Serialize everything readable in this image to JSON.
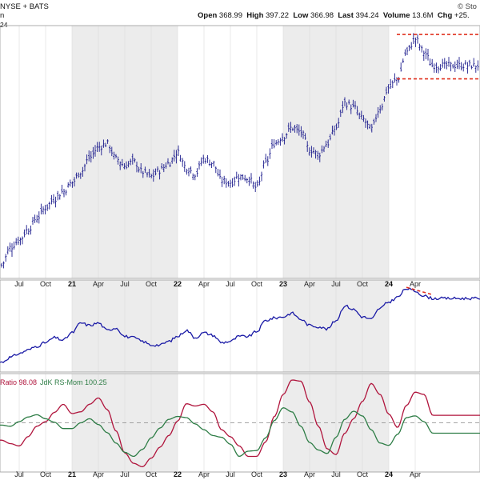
{
  "header": {
    "exchange": "NYSE + BATS",
    "watermark": "© Sto",
    "open_label": "Open",
    "open_value": "368.99",
    "high_label": "High",
    "high_value": "397.22",
    "low_label": "Low",
    "low_value": "366.98",
    "last_label": "Last",
    "last_value": "394.24",
    "volume_label": "Volume",
    "volume_value": "13.6M",
    "chg_label": "Chg",
    "chg_value": "+25.",
    "price_tag_fragment": "24",
    "line2_fragment": "n"
  },
  "indicator": {
    "label_ratio": "Ratio 98.08",
    "label_mom": "JdK RS-Mom 100.25"
  },
  "colors": {
    "price_bars": "#1a1a8c",
    "rs_line": "#1a1aa6",
    "ratio_line": "#b0143c",
    "mom_line": "#2e7d46",
    "annotation": "#e0301e",
    "shade": "#ececec"
  },
  "chart_data": {
    "type": "line",
    "x_tick_labels": [
      "Jul",
      "Oct",
      "21",
      "Apr",
      "Jul",
      "Oct",
      "22",
      "Apr",
      "Jul",
      "Oct",
      "23",
      "Apr",
      "Jul",
      "Oct",
      "24",
      "Apr"
    ],
    "x_ticks": [
      "2020-07",
      "2020-10",
      "2021-01",
      "2021-04",
      "2021-07",
      "2021-10",
      "2022-01",
      "2022-04",
      "2022-07",
      "2022-10",
      "2023-01",
      "2023-04",
      "2023-07",
      "2023-10",
      "2024-01",
      "2024-04"
    ],
    "bold_year_ticks": [
      "21",
      "22",
      "23",
      "24"
    ],
    "panels": [
      {
        "name": "price",
        "style": "ohlc-bars",
        "points": [
          [
            "2020-05",
            185
          ],
          [
            "2020-06",
            205
          ],
          [
            "2020-07",
            213
          ],
          [
            "2020-08",
            225
          ],
          [
            "2020-09",
            238
          ],
          [
            "2020-10",
            250
          ],
          [
            "2020-11",
            260
          ],
          [
            "2020-12",
            268
          ],
          [
            "2021-01",
            278
          ],
          [
            "2021-02",
            290
          ],
          [
            "2021-03",
            306
          ],
          [
            "2021-04",
            318
          ],
          [
            "2021-05",
            322
          ],
          [
            "2021-06",
            305
          ],
          [
            "2021-07",
            297
          ],
          [
            "2021-08",
            302
          ],
          [
            "2021-09",
            290
          ],
          [
            "2021-10",
            285
          ],
          [
            "2021-11",
            292
          ],
          [
            "2021-12",
            300
          ],
          [
            "2022-01",
            312
          ],
          [
            "2022-02",
            295
          ],
          [
            "2022-03",
            288
          ],
          [
            "2022-04",
            305
          ],
          [
            "2022-05",
            300
          ],
          [
            "2022-06",
            280
          ],
          [
            "2022-07",
            278
          ],
          [
            "2022-08",
            285
          ],
          [
            "2022-09",
            283
          ],
          [
            "2022-10",
            272
          ],
          [
            "2022-11",
            300
          ],
          [
            "2022-12",
            322
          ],
          [
            "2023-01",
            330
          ],
          [
            "2023-02",
            340
          ],
          [
            "2023-03",
            335
          ],
          [
            "2023-04",
            315
          ],
          [
            "2023-05",
            310
          ],
          [
            "2023-06",
            322
          ],
          [
            "2023-07",
            340
          ],
          [
            "2023-08",
            368
          ],
          [
            "2023-09",
            363
          ],
          [
            "2023-10",
            350
          ],
          [
            "2023-11",
            338
          ],
          [
            "2023-12",
            362
          ],
          [
            "2024-01",
            385
          ],
          [
            "2024-02",
            395
          ],
          [
            "2024-03",
            425
          ],
          [
            "2024-04",
            440
          ],
          [
            "2024-05",
            425
          ],
          [
            "2024-06",
            410
          ]
        ]
      },
      {
        "name": "relative-strength",
        "points": [
          [
            "2020-05",
            58
          ],
          [
            "2020-06",
            62
          ],
          [
            "2020-07",
            65
          ],
          [
            "2020-08",
            68
          ],
          [
            "2020-09",
            71
          ],
          [
            "2020-10",
            74
          ],
          [
            "2020-11",
            78
          ],
          [
            "2020-12",
            76
          ],
          [
            "2021-01",
            82
          ],
          [
            "2021-02",
            90
          ],
          [
            "2021-03",
            88
          ],
          [
            "2021-04",
            90
          ],
          [
            "2021-05",
            84
          ],
          [
            "2021-06",
            86
          ],
          [
            "2021-07",
            79
          ],
          [
            "2021-08",
            78
          ],
          [
            "2021-09",
            75
          ],
          [
            "2021-10",
            72
          ],
          [
            "2021-11",
            72
          ],
          [
            "2021-12",
            75
          ],
          [
            "2022-01",
            79
          ],
          [
            "2022-02",
            84
          ],
          [
            "2022-03",
            78
          ],
          [
            "2022-04",
            82
          ],
          [
            "2022-05",
            80
          ],
          [
            "2022-06",
            74
          ],
          [
            "2022-07",
            75
          ],
          [
            "2022-08",
            79
          ],
          [
            "2022-09",
            79
          ],
          [
            "2022-10",
            83
          ],
          [
            "2022-11",
            92
          ],
          [
            "2022-12",
            94
          ],
          [
            "2023-01",
            95
          ],
          [
            "2023-02",
            98
          ],
          [
            "2023-03",
            93
          ],
          [
            "2023-04",
            88
          ],
          [
            "2023-05",
            87
          ],
          [
            "2023-06",
            85
          ],
          [
            "2023-07",
            92
          ],
          [
            "2023-08",
            104
          ],
          [
            "2023-09",
            101
          ],
          [
            "2023-10",
            95
          ],
          [
            "2023-11",
            93
          ],
          [
            "2023-12",
            102
          ],
          [
            "2024-01",
            107
          ],
          [
            "2024-02",
            111
          ],
          [
            "2024-03",
            118
          ],
          [
            "2024-04",
            116
          ],
          [
            "2024-05",
            112
          ],
          [
            "2024-06",
            110
          ]
        ]
      },
      {
        "name": "rrg-oscillators",
        "series": [
          {
            "name": "JdK RS-Ratio",
            "color": "#b0143c",
            "points": [
              [
                "2020-05",
                97.0
              ],
              [
                "2020-06",
                96.4
              ],
              [
                "2020-07",
                96.0
              ],
              [
                "2020-08",
                97.6
              ],
              [
                "2020-09",
                99.4
              ],
              [
                "2020-10",
                100.2
              ],
              [
                "2020-11",
                101.8
              ],
              [
                "2020-12",
                103.2
              ],
              [
                "2021-01",
                101.6
              ],
              [
                "2021-02",
                101.9
              ],
              [
                "2021-03",
                103.2
              ],
              [
                "2021-04",
                104.3
              ],
              [
                "2021-05",
                102.3
              ],
              [
                "2021-06",
                98.6
              ],
              [
                "2021-07",
                94.8
              ],
              [
                "2021-08",
                93.0
              ],
              [
                "2021-09",
                92.4
              ],
              [
                "2021-10",
                93.9
              ],
              [
                "2021-11",
                95.8
              ],
              [
                "2021-12",
                97.8
              ],
              [
                "2022-01",
                100.3
              ],
              [
                "2022-02",
                103.3
              ],
              [
                "2022-03",
                102.9
              ],
              [
                "2022-04",
                103.2
              ],
              [
                "2022-05",
                101.9
              ],
              [
                "2022-06",
                98.8
              ],
              [
                "2022-07",
                97.6
              ],
              [
                "2022-08",
                96.0
              ],
              [
                "2022-09",
                94.2
              ],
              [
                "2022-10",
                94.2
              ],
              [
                "2022-11",
                96.7
              ],
              [
                "2022-12",
                101.1
              ],
              [
                "2023-01",
                104.9
              ],
              [
                "2023-02",
                107.4
              ],
              [
                "2023-03",
                107.2
              ],
              [
                "2023-04",
                103.6
              ],
              [
                "2023-05",
                99.4
              ],
              [
                "2023-06",
                95.5
              ],
              [
                "2023-07",
                94.5
              ],
              [
                "2023-08",
                98.2
              ],
              [
                "2023-09",
                100.7
              ],
              [
                "2023-10",
                103.7
              ],
              [
                "2023-11",
                106.8
              ],
              [
                "2023-12",
                104.9
              ],
              [
                "2024-01",
                101.5
              ],
              [
                "2024-02",
                99.2
              ],
              [
                "2024-03",
                103.0
              ],
              [
                "2024-04",
                105.3
              ],
              [
                "2024-05",
                104.9
              ],
              [
                "2024-06",
                101.3
              ]
            ]
          },
          {
            "name": "JdK RS-Mom",
            "color": "#2e7d46",
            "points": [
              [
                "2020-05",
                99.6
              ],
              [
                "2020-06",
                99.4
              ],
              [
                "2020-07",
                100.2
              ],
              [
                "2020-08",
                101.0
              ],
              [
                "2020-09",
                101.4
              ],
              [
                "2020-10",
                100.7
              ],
              [
                "2020-11",
                100.1
              ],
              [
                "2020-12",
                99.0
              ],
              [
                "2021-01",
                99.0
              ],
              [
                "2021-02",
                100.0
              ],
              [
                "2021-03",
                100.7
              ],
              [
                "2021-04",
                99.7
              ],
              [
                "2021-05",
                98.3
              ],
              [
                "2021-06",
                96.5
              ],
              [
                "2021-07",
                94.9
              ],
              [
                "2021-08",
                94.2
              ],
              [
                "2021-09",
                95.4
              ],
              [
                "2021-10",
                97.4
              ],
              [
                "2021-11",
                99.1
              ],
              [
                "2021-12",
                100.6
              ],
              [
                "2022-01",
                101.1
              ],
              [
                "2022-02",
                100.9
              ],
              [
                "2022-03",
                99.8
              ],
              [
                "2022-04",
                98.8
              ],
              [
                "2022-05",
                97.8
              ],
              [
                "2022-06",
                97.5
              ],
              [
                "2022-07",
                96.3
              ],
              [
                "2022-08",
                94.2
              ],
              [
                "2022-09",
                95.1
              ],
              [
                "2022-10",
                95.2
              ],
              [
                "2022-11",
                97.4
              ],
              [
                "2022-12",
                100.4
              ],
              [
                "2023-01",
                102.6
              ],
              [
                "2023-02",
                101.9
              ],
              [
                "2023-03",
                99.4
              ],
              [
                "2023-04",
                96.6
              ],
              [
                "2023-05",
                95.3
              ],
              [
                "2023-06",
                94.7
              ],
              [
                "2023-07",
                97.5
              ],
              [
                "2023-08",
                100.6
              ],
              [
                "2023-09",
                102.0
              ],
              [
                "2023-10",
                101.2
              ],
              [
                "2023-11",
                98.8
              ],
              [
                "2023-12",
                96.5
              ],
              [
                "2024-01",
                96.1
              ],
              [
                "2024-02",
                98.0
              ],
              [
                "2024-03",
                100.9
              ],
              [
                "2024-04",
                101.2
              ],
              [
                "2024-05",
                100.2
              ],
              [
                "2024-06",
                98.2
              ]
            ]
          }
        ]
      }
    ],
    "shaded_years": [
      "2021",
      "2023"
    ],
    "annotations": [
      {
        "panel": "price",
        "type": "horizontal-dashed",
        "value": 445,
        "from": "2024-01",
        "to": "2024-06"
      },
      {
        "panel": "price",
        "type": "horizontal-dashed",
        "value": 395,
        "from": "2024-01",
        "to": "2024-06"
      },
      {
        "panel": "relative-strength",
        "type": "trend-dashed",
        "from": [
          "2024-03",
          119
        ],
        "to": [
          "2024-06",
          113
        ]
      }
    ]
  }
}
